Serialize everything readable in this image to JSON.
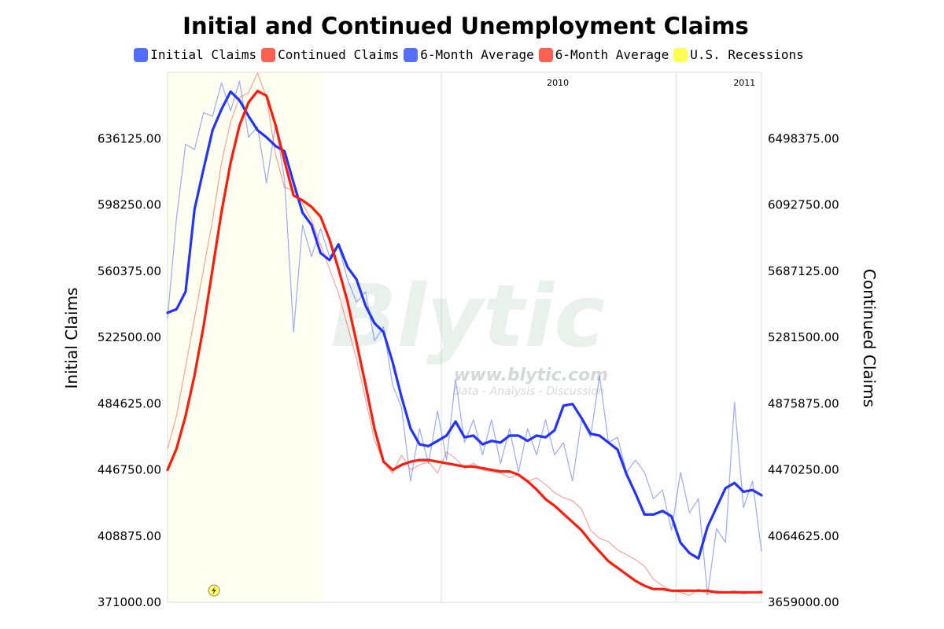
{
  "chart_data": {
    "type": "line",
    "title": "Initial and Continued Unemployment Claims",
    "y_left": {
      "label": "Initial Claims",
      "range": [
        371000,
        673000
      ],
      "ticks": [
        "371000.00",
        "408875.00",
        "446750.00",
        "484625.00",
        "522500.00",
        "560375.00",
        "598250.00",
        "636125.00"
      ]
    },
    "y_right": {
      "label": "Continued Claims",
      "range": [
        3659000,
        6904000
      ],
      "ticks": [
        "3659000.00",
        "4064625.00",
        "4470250.00",
        "4875875.00",
        "5281500.00",
        "5687125.00",
        "6092750.00",
        "6498375.00"
      ]
    },
    "x_range": [
      "2008-11-01",
      "2011-05-14"
    ],
    "x_labels": [
      {
        "text": "2010",
        "date": "2010-01-01"
      },
      {
        "text": "2011",
        "date": "2011-01-01"
      }
    ],
    "grid": {
      "horizontal": false,
      "vertical_at_year_start": true
    },
    "legend_position": "top-center",
    "recession_band": {
      "name": "U.S. Recessions",
      "start": "2008-11-01",
      "end": "2009-06-30",
      "color": "#ffff33"
    },
    "series": [
      {
        "name": "Initial Claims",
        "axis": "left",
        "color": "#3355ff",
        "weight": "thin",
        "x": [
          "2008-11-01",
          "2008-11-15",
          "2008-11-29",
          "2008-12-13",
          "2008-12-27",
          "2009-01-10",
          "2009-01-24",
          "2009-02-07",
          "2009-02-21",
          "2009-03-07",
          "2009-03-21",
          "2009-04-04",
          "2009-04-18",
          "2009-05-02",
          "2009-05-16",
          "2009-05-30",
          "2009-06-13",
          "2009-06-27",
          "2009-07-11",
          "2009-07-25",
          "2009-08-08",
          "2009-08-22",
          "2009-09-05",
          "2009-09-19",
          "2009-10-03",
          "2009-10-17",
          "2009-10-31",
          "2009-11-14",
          "2009-11-28",
          "2009-12-12",
          "2009-12-26",
          "2010-01-09",
          "2010-01-23",
          "2010-02-06",
          "2010-02-20",
          "2010-03-06",
          "2010-03-20",
          "2010-04-03",
          "2010-04-17",
          "2010-05-01",
          "2010-05-15",
          "2010-05-29",
          "2010-06-12",
          "2010-06-26",
          "2010-07-10",
          "2010-07-24",
          "2010-08-07",
          "2010-08-21",
          "2010-09-04",
          "2010-09-18",
          "2010-10-02",
          "2010-10-16",
          "2010-10-30",
          "2010-11-13",
          "2010-11-27",
          "2010-12-11",
          "2010-12-25",
          "2011-01-08",
          "2011-01-22",
          "2011-02-05",
          "2011-02-19",
          "2011-03-05",
          "2011-03-19",
          "2011-04-02",
          "2011-04-16",
          "2011-04-30",
          "2011-05-14"
        ],
        "values": [
          533000,
          590000,
          632000,
          629000,
          650000,
          648000,
          667000,
          651000,
          668000,
          636000,
          642000,
          610000,
          643000,
          612000,
          525000,
          586000,
          568000,
          584000,
          568000,
          574000,
          555000,
          542000,
          548000,
          520000,
          528000,
          495000,
          482000,
          440000,
          470000,
          450000,
          480000,
          452000,
          498000,
          462000,
          475000,
          455000,
          475000,
          450000,
          470000,
          445000,
          470000,
          455000,
          475000,
          455000,
          462000,
          440000,
          475000,
          465000,
          500000,
          462000,
          465000,
          445000,
          452000,
          445000,
          430000,
          435000,
          412000,
          445000,
          422000,
          430000,
          375000,
          413000,
          405000,
          485000,
          425000,
          440000,
          400000
        ]
      },
      {
        "name": "Continued Claims",
        "axis": "right",
        "color": "#ff4433",
        "weight": "thin",
        "x": [
          "2008-11-01",
          "2008-11-15",
          "2008-11-29",
          "2008-12-13",
          "2008-12-27",
          "2009-01-10",
          "2009-01-24",
          "2009-02-07",
          "2009-02-21",
          "2009-03-07",
          "2009-03-21",
          "2009-04-04",
          "2009-04-18",
          "2009-05-02",
          "2009-05-16",
          "2009-05-30",
          "2009-06-13",
          "2009-06-27",
          "2009-07-11",
          "2009-07-25",
          "2009-08-08",
          "2009-08-22",
          "2009-09-05",
          "2009-09-19",
          "2009-10-03",
          "2009-10-17",
          "2009-10-31",
          "2009-11-14",
          "2009-11-28",
          "2009-12-12",
          "2009-12-26",
          "2010-01-09",
          "2010-01-23",
          "2010-02-06",
          "2010-02-20",
          "2010-03-06",
          "2010-03-20",
          "2010-04-03",
          "2010-04-17",
          "2010-05-01",
          "2010-05-15",
          "2010-05-29",
          "2010-06-12",
          "2010-06-26",
          "2010-07-10",
          "2010-07-24",
          "2010-08-07",
          "2010-08-21",
          "2010-09-04",
          "2010-09-18",
          "2010-10-02",
          "2010-10-16",
          "2010-10-30",
          "2010-11-13",
          "2010-11-27",
          "2010-12-11",
          "2010-12-25",
          "2011-01-08",
          "2011-01-22",
          "2011-02-05",
          "2011-02-19",
          "2011-03-05",
          "2011-03-19",
          "2011-04-02",
          "2011-04-16",
          "2011-04-30",
          "2011-05-14"
        ],
        "values": [
          4600000,
          4800000,
          5100000,
          5400000,
          5700000,
          6000000,
          6350000,
          6600000,
          6750000,
          6780000,
          6900000,
          6750000,
          6400000,
          6200000,
          6180000,
          6100000,
          6000000,
          5850000,
          5700000,
          5550000,
          5350000,
          5150000,
          4900000,
          4650000,
          4520000,
          4450000,
          4560000,
          4470000,
          4500000,
          4520000,
          4450000,
          4580000,
          4540000,
          4480000,
          4510000,
          4470000,
          4460000,
          4450000,
          4420000,
          4440000,
          4400000,
          4420000,
          4380000,
          4330000,
          4300000,
          4280000,
          4230000,
          4100000,
          4050000,
          4030000,
          3980000,
          3950000,
          3920000,
          3880000,
          3800000,
          3760000,
          3730000,
          3720000,
          3700000,
          3740000,
          3710000,
          3730000,
          3720000,
          3730000,
          3710000,
          3720000,
          3730000
        ]
      },
      {
        "name": "6-Month Average",
        "axis": "left",
        "color": "#2233ff",
        "weight": "bold",
        "x": [
          "2008-11-01",
          "2008-11-15",
          "2008-11-29",
          "2008-12-13",
          "2008-12-27",
          "2009-01-10",
          "2009-01-24",
          "2009-02-07",
          "2009-02-21",
          "2009-03-07",
          "2009-03-21",
          "2009-04-04",
          "2009-04-18",
          "2009-05-02",
          "2009-05-16",
          "2009-05-30",
          "2009-06-13",
          "2009-06-27",
          "2009-07-11",
          "2009-07-25",
          "2009-08-08",
          "2009-08-22",
          "2009-09-05",
          "2009-09-19",
          "2009-10-03",
          "2009-10-17",
          "2009-10-31",
          "2009-11-14",
          "2009-11-28",
          "2009-12-12",
          "2009-12-26",
          "2010-01-09",
          "2010-01-23",
          "2010-02-06",
          "2010-02-20",
          "2010-03-06",
          "2010-03-20",
          "2010-04-03",
          "2010-04-17",
          "2010-05-01",
          "2010-05-15",
          "2010-05-29",
          "2010-06-12",
          "2010-06-26",
          "2010-07-10",
          "2010-07-24",
          "2010-08-07",
          "2010-08-21",
          "2010-09-04",
          "2010-09-18",
          "2010-10-02",
          "2010-10-16",
          "2010-10-30",
          "2010-11-13",
          "2010-11-27",
          "2010-12-11",
          "2010-12-25",
          "2011-01-08",
          "2011-01-22",
          "2011-02-05",
          "2011-02-19",
          "2011-03-05",
          "2011-03-19",
          "2011-04-02",
          "2011-04-16",
          "2011-04-30",
          "2011-05-14"
        ],
        "values": [
          536000,
          538000,
          548000,
          595000,
          618000,
          640000,
          652000,
          662000,
          657000,
          648000,
          640000,
          636000,
          631000,
          628000,
          610000,
          593000,
          586000,
          570000,
          566000,
          575000,
          562000,
          555000,
          540000,
          530000,
          525000,
          508000,
          488000,
          470000,
          461000,
          460000,
          463000,
          466000,
          474000,
          465000,
          466000,
          461000,
          463000,
          462000,
          466000,
          466000,
          463000,
          466000,
          465000,
          469000,
          483000,
          484000,
          476000,
          467000,
          466000,
          462000,
          458000,
          444000,
          433000,
          421000,
          421000,
          423000,
          420000,
          405000,
          399000,
          396000,
          414000,
          425000,
          436000,
          439000,
          434000,
          435000,
          432000
        ]
      },
      {
        "name": "6-Month Average",
        "axis": "right",
        "color": "#ff1a0a",
        "weight": "bold",
        "x": [
          "2008-11-01",
          "2008-11-15",
          "2008-11-29",
          "2008-12-13",
          "2008-12-27",
          "2009-01-10",
          "2009-01-24",
          "2009-02-07",
          "2009-02-21",
          "2009-03-07",
          "2009-03-21",
          "2009-04-04",
          "2009-04-18",
          "2009-05-02",
          "2009-05-16",
          "2009-05-30",
          "2009-06-13",
          "2009-06-27",
          "2009-07-11",
          "2009-07-25",
          "2009-08-08",
          "2009-08-22",
          "2009-09-05",
          "2009-09-19",
          "2009-10-03",
          "2009-10-17",
          "2009-10-31",
          "2009-11-14",
          "2009-11-28",
          "2009-12-12",
          "2009-12-26",
          "2010-01-09",
          "2010-01-23",
          "2010-02-06",
          "2010-02-20",
          "2010-03-06",
          "2010-03-20",
          "2010-04-03",
          "2010-04-17",
          "2010-05-01",
          "2010-05-15",
          "2010-05-29",
          "2010-06-12",
          "2010-06-26",
          "2010-07-10",
          "2010-07-24",
          "2010-08-07",
          "2010-08-21",
          "2010-09-04",
          "2010-09-18",
          "2010-10-02",
          "2010-10-16",
          "2010-10-30",
          "2010-11-13",
          "2010-11-27",
          "2010-12-11",
          "2010-12-25",
          "2011-01-08",
          "2011-01-22",
          "2011-02-05",
          "2011-02-19",
          "2011-03-05",
          "2011-03-19",
          "2011-04-02",
          "2011-04-16",
          "2011-04-30",
          "2011-05-14"
        ],
        "values": [
          4470000,
          4600000,
          4800000,
          5050000,
          5350000,
          5700000,
          6050000,
          6350000,
          6580000,
          6720000,
          6790000,
          6760000,
          6580000,
          6360000,
          6150000,
          6120000,
          6080000,
          6020000,
          5880000,
          5700000,
          5500000,
          5250000,
          4990000,
          4720000,
          4520000,
          4470000,
          4500000,
          4520000,
          4530000,
          4530000,
          4520000,
          4510000,
          4500000,
          4490000,
          4490000,
          4480000,
          4470000,
          4460000,
          4460000,
          4440000,
          4400000,
          4350000,
          4290000,
          4250000,
          4200000,
          4150000,
          4100000,
          4030000,
          3970000,
          3910000,
          3870000,
          3830000,
          3790000,
          3760000,
          3740000,
          3740000,
          3730000,
          3730000,
          3730000,
          3730000,
          3730000,
          3720000,
          3720000,
          3720000,
          3720000,
          3720000,
          3720000
        ]
      }
    ],
    "legend": [
      {
        "label": "Initial Claims",
        "color": "#3355ff"
      },
      {
        "label": "Continued Claims",
        "color": "#ff4433"
      },
      {
        "label": "6-Month Average",
        "color": "#3355ff"
      },
      {
        "label": "6-Month Average",
        "color": "#ff4433"
      },
      {
        "label": "U.S. Recessions",
        "color": "#ffff33"
      }
    ]
  },
  "watermark": {
    "logo_text": "Blytic",
    "url": "www.blytic.com",
    "tagline": "Data - Analysis - Discussion"
  }
}
